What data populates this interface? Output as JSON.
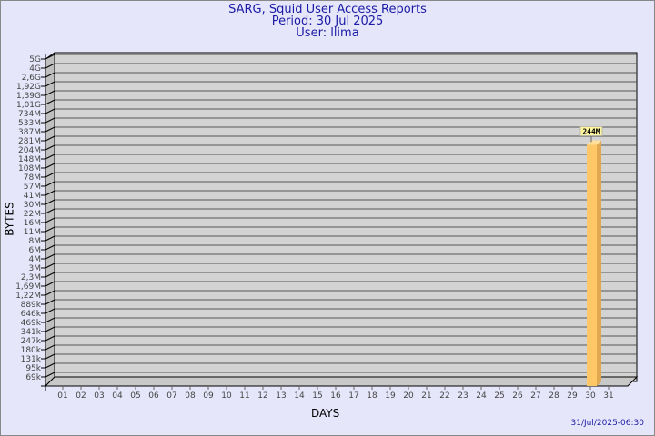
{
  "header": {
    "title": "SARG, Squid User Access Reports",
    "period": "Period: 30 Jul 2025",
    "user": "User: llima"
  },
  "timestamp": "31/Jul/2025-06:30",
  "chart_data": {
    "type": "bar",
    "xlabel": "DAYS",
    "ylabel": "BYTES",
    "y_scale": "log",
    "y_ticks": [
      "5G",
      "4G",
      "2,6G",
      "1,92G",
      "1,39G",
      "1,01G",
      "734M",
      "533M",
      "387M",
      "281M",
      "204M",
      "148M",
      "108M",
      "78M",
      "57M",
      "41M",
      "30M",
      "22M",
      "16M",
      "11M",
      "8M",
      "6M",
      "4M",
      "3M",
      "2,3M",
      "1,69M",
      "1,22M",
      "889k",
      "646k",
      "469k",
      "341k",
      "247k",
      "180k",
      "131k",
      "95k",
      "69k"
    ],
    "categories": [
      "01",
      "02",
      "03",
      "04",
      "05",
      "06",
      "07",
      "08",
      "09",
      "10",
      "11",
      "12",
      "13",
      "14",
      "15",
      "16",
      "17",
      "18",
      "19",
      "20",
      "21",
      "22",
      "23",
      "24",
      "25",
      "26",
      "27",
      "28",
      "29",
      "30",
      "31"
    ],
    "bars": [
      {
        "day": "30",
        "value_label": "244M"
      }
    ],
    "grid": true,
    "colors": {
      "bar": "#ffc766",
      "bar_side": "#e0a850",
      "panel": "#d3d3d3",
      "background": "#e6e6fa",
      "title": "#1a1aa6"
    }
  }
}
